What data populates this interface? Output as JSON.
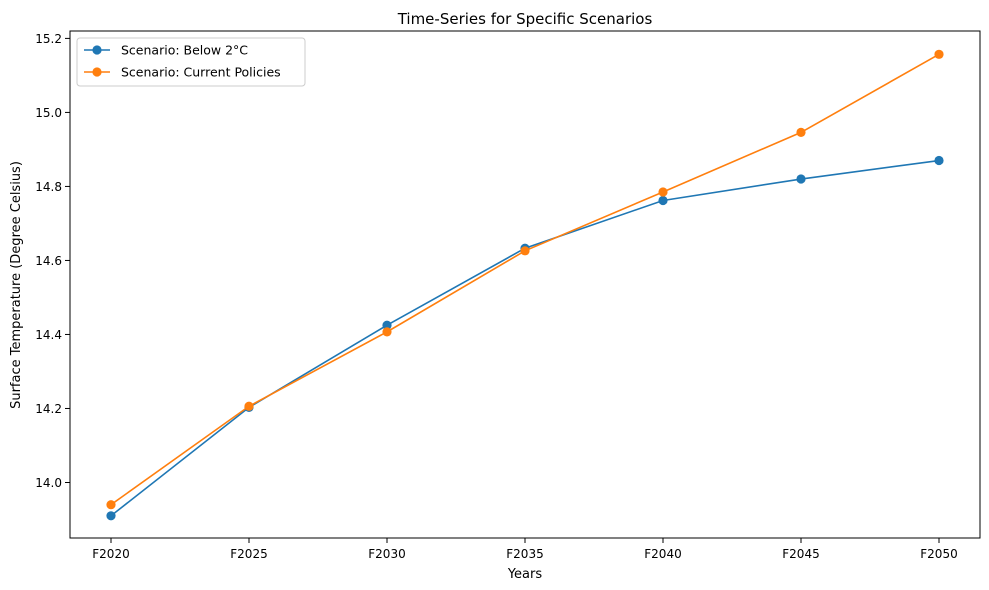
{
  "chart_data": {
    "type": "line",
    "title": "Time-Series for Specific Scenarios",
    "xlabel": "Years",
    "ylabel": "Surface Temperature (Degree Celsius)",
    "categories": [
      "F2020",
      "F2025",
      "F2030",
      "F2035",
      "F2040",
      "F2045",
      "F2050"
    ],
    "ylim": [
      13.85,
      15.22
    ],
    "yticks": [
      "14.0",
      "14.2",
      "14.4",
      "14.6",
      "14.8",
      "15.0",
      "15.2"
    ],
    "grid": false,
    "legend_position": "upper-left",
    "series": [
      {
        "name": "Scenario: Below 2°C",
        "color": "#1f77b4",
        "values": [
          13.91,
          14.203,
          14.425,
          14.633,
          14.762,
          14.82,
          14.87
        ]
      },
      {
        "name": "Scenario: Current Policies",
        "color": "#ff7f0e",
        "values": [
          13.94,
          14.206,
          14.407,
          14.626,
          14.785,
          14.946,
          15.157
        ]
      }
    ]
  }
}
